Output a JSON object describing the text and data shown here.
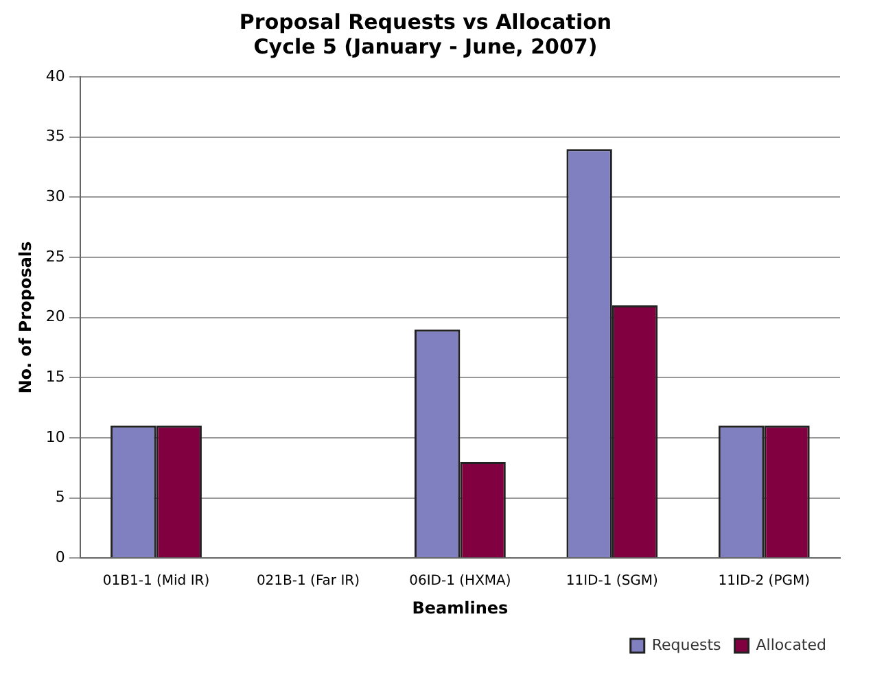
{
  "chart_data": {
    "type": "bar",
    "title": "Proposal Requests vs Allocation",
    "subtitle": "Cycle 5 (January - June, 2007)",
    "xlabel": "Beamlines",
    "ylabel": "No. of Proposals",
    "categories": [
      "01B1-1 (Mid IR)",
      "021B-1 (Far IR)",
      "06ID-1 (HXMA)",
      "11ID-1 (SGM)",
      "11ID-2 (PGM)"
    ],
    "series": [
      {
        "name": "Requests",
        "color": "#8080c0",
        "values": [
          11,
          0,
          19,
          34,
          11
        ]
      },
      {
        "name": "Allocated",
        "color": "#800040",
        "values": [
          11,
          0,
          8,
          21,
          11
        ]
      }
    ],
    "ylim": [
      0,
      40
    ],
    "yticks": [
      0,
      5,
      10,
      15,
      20,
      25,
      30,
      35,
      40
    ],
    "grid": "y",
    "legend": "bottom right"
  }
}
